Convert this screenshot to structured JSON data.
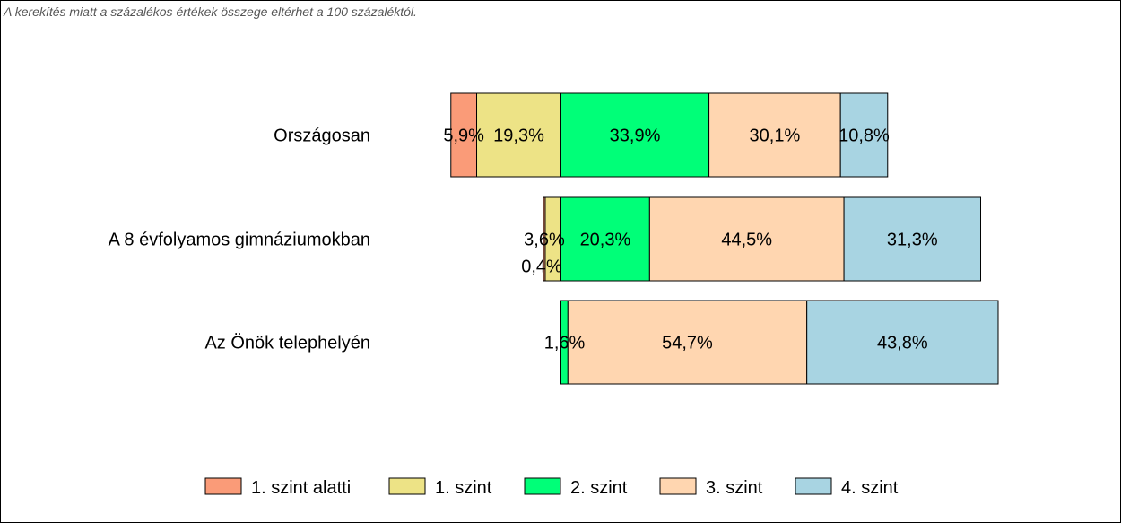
{
  "note": "A kerekítés miatt a  százalékos értékek összege eltérhet a 100 százaléktól.",
  "chart_data": {
    "type": "bar",
    "orientation": "horizontal",
    "stacked": true,
    "categories": [
      "Országosan",
      "A 8 évfolyamos gimnáziumokban",
      "Az Önök telephelyén"
    ],
    "series": [
      {
        "name": "1. szint alatti",
        "color": "#FA9B78",
        "values": [
          5.9,
          0.4,
          0.0
        ],
        "labels": [
          "5,9%",
          "0,4%",
          ""
        ]
      },
      {
        "name": "1. szint",
        "color": "#EDE386",
        "values": [
          19.3,
          3.6,
          0.0
        ],
        "labels": [
          "19,3%",
          "3,6%",
          ""
        ]
      },
      {
        "name": "2. szint",
        "color": "#00FF78",
        "values": [
          33.9,
          20.3,
          1.6
        ],
        "labels": [
          "33,9%",
          "20,3%",
          "1,6%"
        ]
      },
      {
        "name": "3. szint",
        "color": "#FFD6B0",
        "values": [
          30.1,
          44.5,
          54.7
        ],
        "labels": [
          "30,1%",
          "44,5%",
          "54,7%"
        ]
      },
      {
        "name": "4. szint",
        "color": "#A8D4E2",
        "values": [
          10.8,
          31.3,
          43.8
        ],
        "labels": [
          "10,8%",
          "31,3%",
          "43,8%"
        ]
      }
    ],
    "alignment": "centered on 1. szint / 2. szint boundary",
    "legend_position": "bottom"
  }
}
